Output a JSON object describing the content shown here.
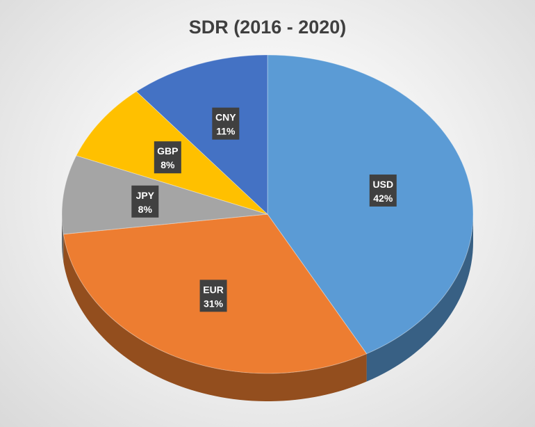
{
  "chart_data": {
    "type": "pie",
    "title": "SDR (2016 - 2020)",
    "slices": [
      {
        "label": "USD",
        "value": 42,
        "value_label": "42%",
        "color": "#5b9bd5"
      },
      {
        "label": "EUR",
        "value": 31,
        "value_label": "31%",
        "color": "#ed7d31"
      },
      {
        "label": "JPY",
        "value": 8,
        "value_label": "8%",
        "color": "#a5a5a5"
      },
      {
        "label": "GBP",
        "value": 8,
        "value_label": "8%",
        "color": "#ffc000"
      },
      {
        "label": "CNY",
        "value": 11,
        "value_label": "11%",
        "color": "#4472c4"
      }
    ],
    "style": "3d-pie",
    "legend": "none",
    "data_labels": "category-and-percent"
  }
}
